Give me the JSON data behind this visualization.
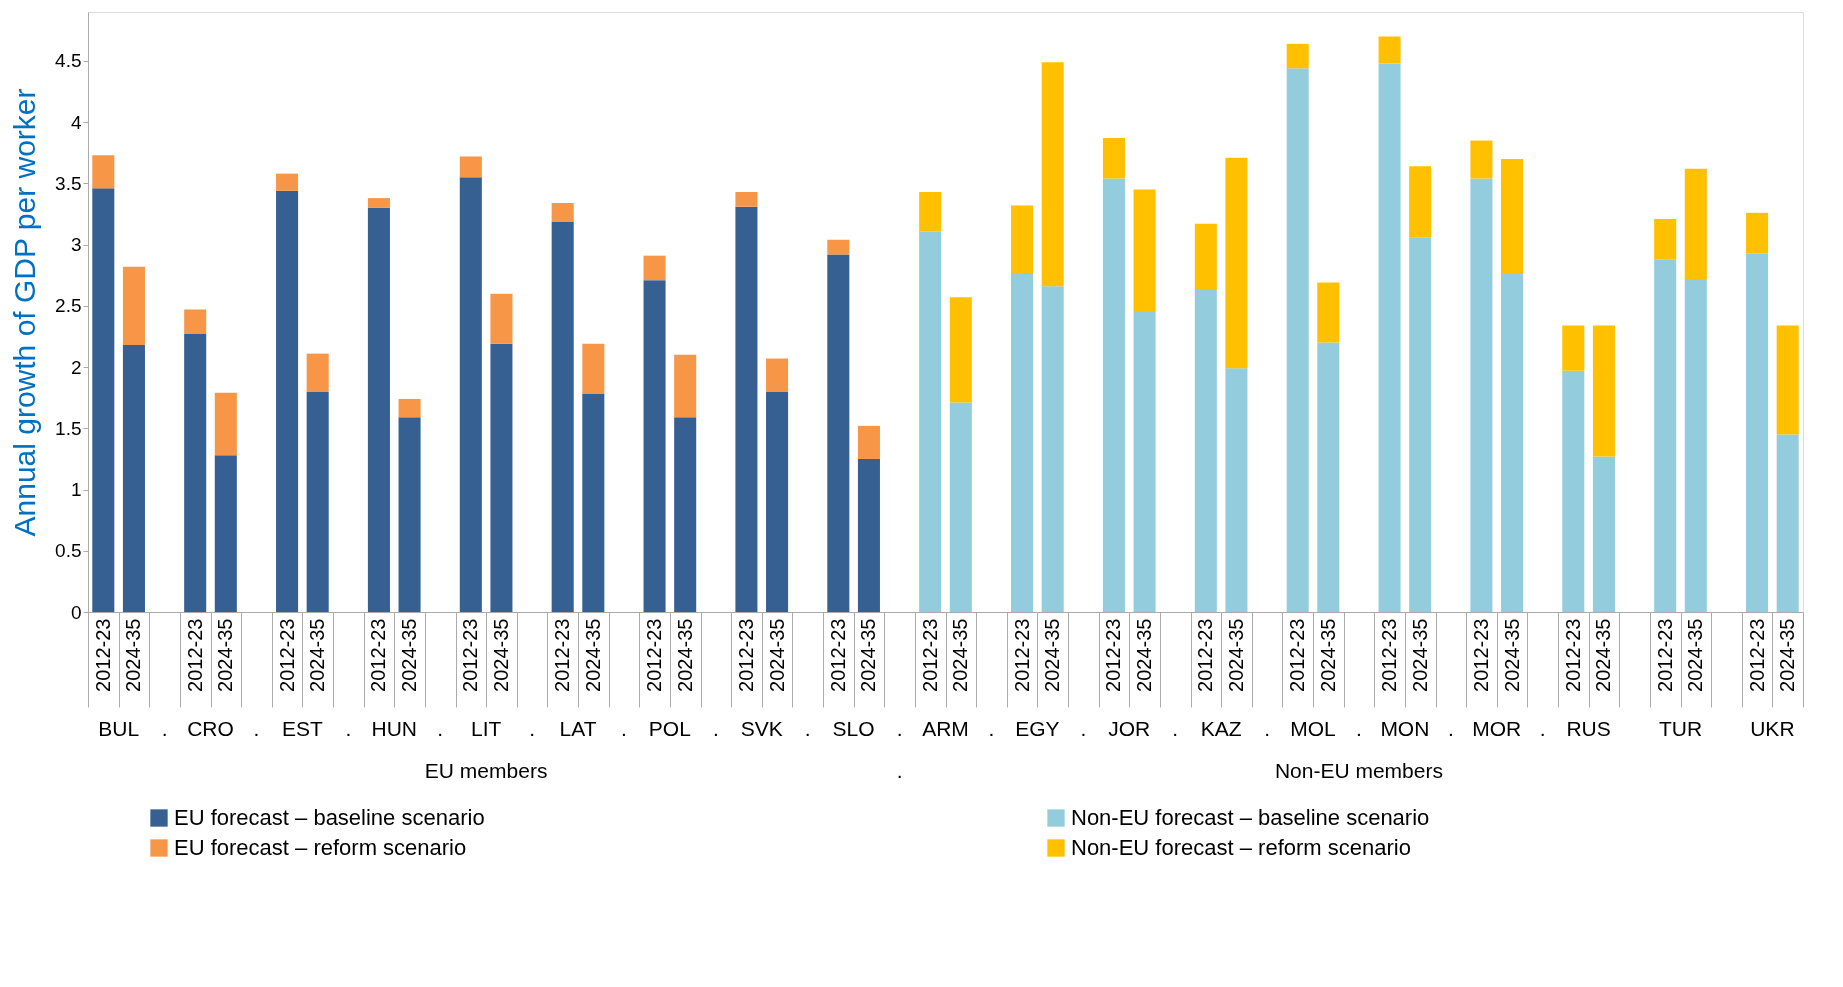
{
  "chart_data": {
    "type": "bar",
    "stacked": true,
    "ylabel": "Annual growth of GDP per worker",
    "categories": [
      "2012-23",
      "2024-35",
      null,
      "2012-23",
      "2024-35",
      null,
      "2012-23",
      "2024-35",
      null,
      "2012-23",
      "2024-35",
      null,
      "2012-23",
      "2024-35",
      null,
      "2012-23",
      "2024-35",
      null,
      "2012-23",
      "2024-35",
      null,
      "2012-23",
      "2024-35",
      null,
      "2012-23",
      "2024-35",
      null,
      "2012-23",
      "2024-35",
      null,
      "2012-23",
      "2024-35",
      null,
      "2012-23",
      "2024-35",
      null,
      "2012-23",
      "2024-35",
      null,
      "2012-23",
      "2024-35",
      null,
      "2012-23",
      "2024-35",
      null,
      "2012-23",
      "2024-35",
      null,
      "2012-23",
      "2024-35",
      null,
      "2012-23",
      "2024-35",
      null,
      "2012-23",
      "2024-35"
    ],
    "series": [
      {
        "name": "EU forecast – baseline scenario",
        "color": "#366092",
        "values": [
          3.46,
          2.18,
          null,
          2.27,
          1.28,
          null,
          3.44,
          1.8,
          null,
          3.3,
          1.59,
          null,
          3.55,
          2.19,
          null,
          3.19,
          1.78,
          null,
          2.71,
          1.59,
          null,
          3.31,
          1.8,
          null,
          2.92,
          1.25,
          null,
          null,
          null,
          null,
          null,
          null,
          null,
          null,
          null,
          null,
          null,
          null,
          null,
          null,
          null,
          null,
          null,
          null,
          null,
          null,
          null,
          null,
          null,
          null,
          null,
          null,
          null,
          null,
          null,
          null
        ]
      },
      {
        "name": "EU forecast – reform scenario",
        "color": "#f79646",
        "values": [
          0.27,
          0.64,
          null,
          0.2,
          0.51,
          null,
          0.14,
          0.31,
          null,
          0.08,
          0.15,
          null,
          0.17,
          0.41,
          null,
          0.15,
          0.41,
          null,
          0.2,
          0.51,
          null,
          0.12,
          0.27,
          null,
          0.12,
          0.27,
          null,
          null,
          null,
          null,
          null,
          null,
          null,
          null,
          null,
          null,
          null,
          null,
          null,
          null,
          null,
          null,
          null,
          null,
          null,
          null,
          null,
          null,
          null,
          null,
          null,
          null,
          null,
          null,
          null,
          null
        ]
      },
      {
        "name": "Non-EU forecast – baseline scenario",
        "color": "#93cddd",
        "values": [
          null,
          null,
          null,
          null,
          null,
          null,
          null,
          null,
          null,
          null,
          null,
          null,
          null,
          null,
          null,
          null,
          null,
          null,
          null,
          null,
          null,
          null,
          null,
          null,
          null,
          null,
          null,
          3.11,
          1.71,
          null,
          2.76,
          2.66,
          null,
          3.54,
          2.45,
          null,
          2.63,
          1.99,
          null,
          4.44,
          2.2,
          null,
          4.48,
          3.06,
          null,
          3.54,
          2.76,
          null,
          1.97,
          1.27,
          null,
          2.88,
          2.72,
          null,
          2.93,
          1.45
        ]
      },
      {
        "name": "Non-EU forecast – reform scenario",
        "color": "#ffc000",
        "values": [
          null,
          null,
          null,
          null,
          null,
          null,
          null,
          null,
          null,
          null,
          null,
          null,
          null,
          null,
          null,
          null,
          null,
          null,
          null,
          null,
          null,
          null,
          null,
          null,
          null,
          null,
          null,
          0.32,
          0.86,
          null,
          0.56,
          1.83,
          null,
          0.33,
          1.0,
          null,
          0.54,
          1.72,
          null,
          0.2,
          0.49,
          null,
          0.22,
          0.58,
          null,
          0.31,
          0.94,
          null,
          0.37,
          1.07,
          null,
          0.33,
          0.9,
          null,
          0.33,
          0.89
        ]
      }
    ],
    "ylim": [
      0,
      4.9
    ],
    "yticks": [
      0,
      0.5,
      1,
      1.5,
      2,
      2.5,
      3,
      3.5,
      4,
      4.5
    ],
    "grid": false,
    "legend": "bottom",
    "annotations": [
      "BUL",
      "CRO",
      "EST",
      "HUN",
      "LIT",
      "LAT",
      "POL",
      "SVK",
      "SLO",
      "ARM",
      "EGY",
      "JOR",
      "KAZ",
      "MOL",
      "MON",
      "MOR",
      "RUS",
      "TUR",
      "UKR",
      ".",
      ".",
      ".",
      ".",
      ".",
      ".",
      ".",
      ".",
      ".",
      ".",
      ".",
      ".",
      ".",
      ".",
      ".",
      ".",
      "EU members",
      ".",
      "Non-EU members"
    ]
  }
}
